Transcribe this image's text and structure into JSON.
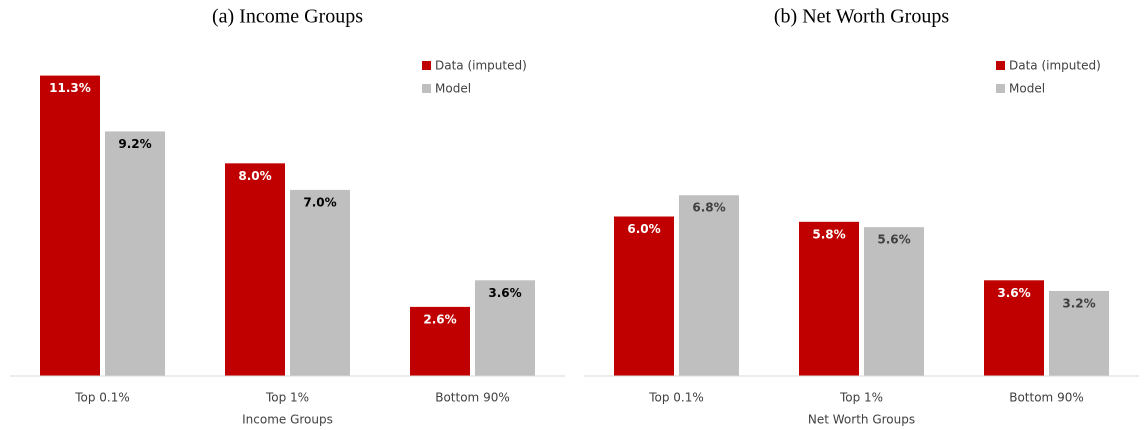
{
  "chart_data": [
    {
      "type": "bar",
      "title": "(a) Income Groups",
      "xlabel": "Income Groups",
      "categories": [
        "Top 0.1%",
        "Top 1%",
        "Bottom 90%"
      ],
      "series": [
        {
          "name": "Data (imputed)",
          "color": "#c00000",
          "label_color": "#ffffff",
          "values": [
            11.3,
            8.0,
            2.6
          ],
          "value_labels": [
            "11.3%",
            "8.0%",
            "2.6%"
          ]
        },
        {
          "name": "Model",
          "color": "#bfbfbf",
          "label_color": "#000000",
          "values": [
            9.2,
            7.0,
            3.6
          ],
          "value_labels": [
            "9.2%",
            "7.0%",
            "3.6%"
          ]
        }
      ],
      "ylim": [
        0,
        12
      ],
      "legend": "upper right"
    },
    {
      "type": "bar",
      "title": "(b) Net Worth Groups",
      "xlabel": "Net Worth Groups",
      "categories": [
        "Top 0.1%",
        "Top 1%",
        "Bottom 90%"
      ],
      "series": [
        {
          "name": "Data (imputed)",
          "color": "#c00000",
          "label_color": "#ffffff",
          "values": [
            6.0,
            5.8,
            3.6
          ],
          "value_labels": [
            "6.0%",
            "5.8%",
            "3.6%"
          ]
        },
        {
          "name": "Model",
          "color": "#bfbfbf",
          "label_color": "#404040",
          "values": [
            6.8,
            5.6,
            3.2
          ],
          "value_labels": [
            "6.8%",
            "5.6%",
            "3.2%"
          ]
        }
      ],
      "ylim": [
        0,
        12
      ],
      "legend": "upper right"
    }
  ]
}
